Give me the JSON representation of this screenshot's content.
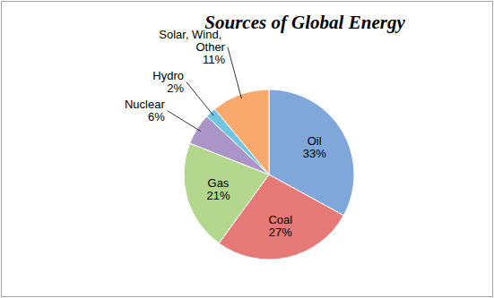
{
  "chart_data": {
    "type": "pie",
    "title": "Sources of Global Energy",
    "categories": [
      "Oil",
      "Coal",
      "Gas",
      "Nuclear",
      "Hydro",
      "Solar, Wind, Other"
    ],
    "values": [
      33,
      27,
      21,
      6,
      2,
      11
    ],
    "value_labels": [
      "33%",
      "27%",
      "21%",
      "6%",
      "2%",
      "11%"
    ],
    "colors": [
      "#7fa7d9",
      "#e67a76",
      "#b3d78d",
      "#ab95c8",
      "#6ec6e2",
      "#f9a96b"
    ],
    "data_labels": true
  }
}
